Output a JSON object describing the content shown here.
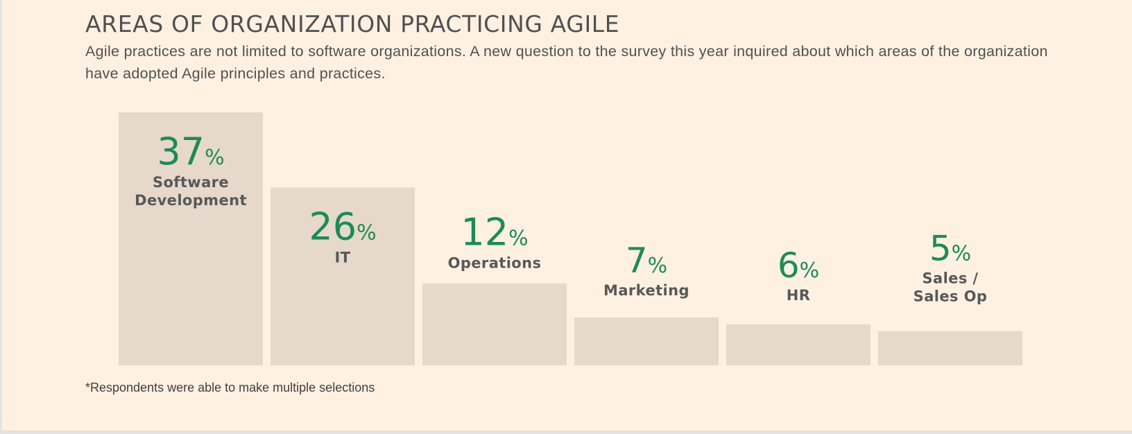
{
  "chart_data": {
    "type": "bar",
    "title": "AREAS OF ORGANIZATION PRACTICING AGILE",
    "subtitle": "Agile practices are not limited to software organizations. A new question to the survey this year inquired about which areas of the organization have adopted Agile principles and practices.",
    "categories": [
      "Software Development",
      "IT",
      "Operations",
      "Marketing",
      "HR",
      "Sales / Sales Op"
    ],
    "category_lines": [
      [
        "Software",
        "Development"
      ],
      [
        "IT"
      ],
      [
        "Operations"
      ],
      [
        "Marketing"
      ],
      [
        "HR"
      ],
      [
        "Sales /",
        "Sales Op"
      ]
    ],
    "values": [
      37,
      26,
      12,
      7,
      6,
      5
    ],
    "value_labels": [
      "37",
      "26",
      "12",
      "7",
      "6",
      "5"
    ],
    "value_suffix": "%",
    "xlabel": "",
    "ylabel": "",
    "ylim": [
      0,
      37
    ],
    "grid": false,
    "legend": "none",
    "colors": {
      "bar": "#e6d9cb",
      "value_text": "#1e8a58",
      "label_text": "#585858",
      "background": "#fff1e2"
    }
  },
  "footnote": "*Respondents were able to make multiple selections"
}
